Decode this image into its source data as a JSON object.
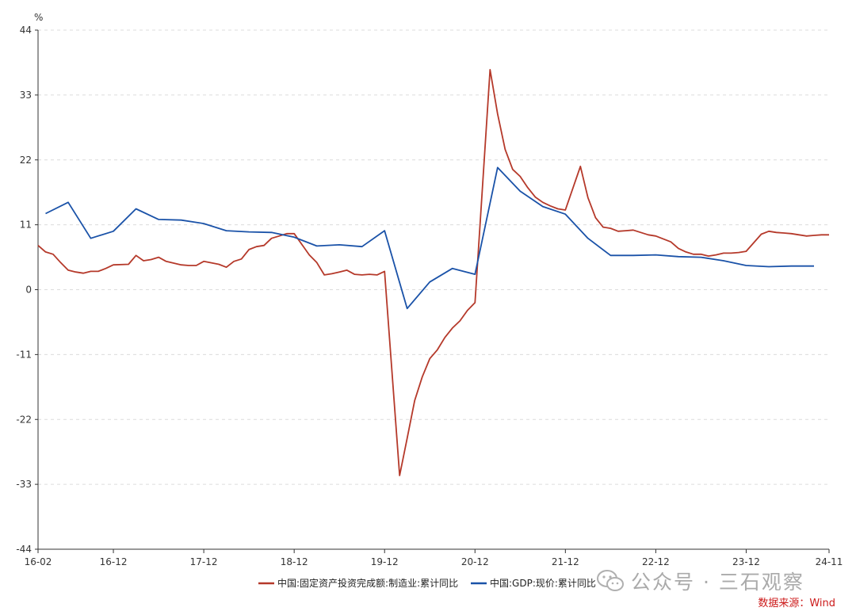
{
  "chart_data": {
    "type": "line",
    "unit_label": "%",
    "ylim": [
      -44,
      44
    ],
    "yticks": [
      44,
      33,
      22,
      11,
      0,
      -11,
      -22,
      -33,
      -44
    ],
    "xlim": [
      "2016-02",
      "2024-11"
    ],
    "xticks": [
      "16-02",
      "16-12",
      "17-12",
      "18-12",
      "19-12",
      "20-12",
      "21-12",
      "22-12",
      "23-12",
      "24-11"
    ],
    "grid": "horizontal dashed",
    "legend_position": "bottom",
    "series": [
      {
        "name": "中国:固定资产投资完成额:制造业:累计同比",
        "color": "#b5392a",
        "points": [
          [
            "2016-02",
            7.5
          ],
          [
            "2016-03",
            6.4
          ],
          [
            "2016-04",
            6.0
          ],
          [
            "2016-05",
            4.6
          ],
          [
            "2016-06",
            3.3
          ],
          [
            "2016-07",
            3.0
          ],
          [
            "2016-08",
            2.8
          ],
          [
            "2016-09",
            3.1
          ],
          [
            "2016-10",
            3.1
          ],
          [
            "2016-11",
            3.6
          ],
          [
            "2016-12",
            4.2
          ],
          [
            "2017-02",
            4.3
          ],
          [
            "2017-03",
            5.8
          ],
          [
            "2017-04",
            4.9
          ],
          [
            "2017-05",
            5.1
          ],
          [
            "2017-06",
            5.5
          ],
          [
            "2017-07",
            4.8
          ],
          [
            "2017-08",
            4.5
          ],
          [
            "2017-09",
            4.2
          ],
          [
            "2017-10",
            4.1
          ],
          [
            "2017-11",
            4.1
          ],
          [
            "2017-12",
            4.8
          ],
          [
            "2018-02",
            4.3
          ],
          [
            "2018-03",
            3.8
          ],
          [
            "2018-04",
            4.8
          ],
          [
            "2018-05",
            5.2
          ],
          [
            "2018-06",
            6.8
          ],
          [
            "2018-07",
            7.3
          ],
          [
            "2018-08",
            7.5
          ],
          [
            "2018-09",
            8.7
          ],
          [
            "2018-10",
            9.1
          ],
          [
            "2018-11",
            9.5
          ],
          [
            "2018-12",
            9.5
          ],
          [
            "2019-02",
            5.9
          ],
          [
            "2019-03",
            4.6
          ],
          [
            "2019-04",
            2.5
          ],
          [
            "2019-05",
            2.7
          ],
          [
            "2019-06",
            3.0
          ],
          [
            "2019-07",
            3.3
          ],
          [
            "2019-08",
            2.6
          ],
          [
            "2019-09",
            2.5
          ],
          [
            "2019-10",
            2.6
          ],
          [
            "2019-11",
            2.5
          ],
          [
            "2019-12",
            3.1
          ],
          [
            "2020-02",
            -31.5
          ],
          [
            "2020-03",
            -25.2
          ],
          [
            "2020-04",
            -18.8
          ],
          [
            "2020-05",
            -14.8
          ],
          [
            "2020-06",
            -11.7
          ],
          [
            "2020-07",
            -10.2
          ],
          [
            "2020-08",
            -8.1
          ],
          [
            "2020-09",
            -6.5
          ],
          [
            "2020-10",
            -5.3
          ],
          [
            "2020-11",
            -3.5
          ],
          [
            "2020-12",
            -2.2
          ],
          [
            "2021-02",
            37.3
          ],
          [
            "2021-03",
            29.8
          ],
          [
            "2021-04",
            23.8
          ],
          [
            "2021-05",
            20.4
          ],
          [
            "2021-06",
            19.2
          ],
          [
            "2021-07",
            17.3
          ],
          [
            "2021-08",
            15.7
          ],
          [
            "2021-09",
            14.8
          ],
          [
            "2021-10",
            14.2
          ],
          [
            "2021-11",
            13.7
          ],
          [
            "2021-12",
            13.5
          ],
          [
            "2022-02",
            20.9
          ],
          [
            "2022-03",
            15.6
          ],
          [
            "2022-04",
            12.2
          ],
          [
            "2022-05",
            10.6
          ],
          [
            "2022-06",
            10.4
          ],
          [
            "2022-07",
            9.9
          ],
          [
            "2022-08",
            10.0
          ],
          [
            "2022-09",
            10.1
          ],
          [
            "2022-10",
            9.7
          ],
          [
            "2022-11",
            9.3
          ],
          [
            "2022-12",
            9.1
          ],
          [
            "2023-02",
            8.1
          ],
          [
            "2023-03",
            7.0
          ],
          [
            "2023-04",
            6.4
          ],
          [
            "2023-05",
            6.0
          ],
          [
            "2023-06",
            6.0
          ],
          [
            "2023-07",
            5.7
          ],
          [
            "2023-08",
            5.9
          ],
          [
            "2023-09",
            6.2
          ],
          [
            "2023-10",
            6.2
          ],
          [
            "2023-11",
            6.3
          ],
          [
            "2023-12",
            6.5
          ],
          [
            "2024-02",
            9.4
          ],
          [
            "2024-03",
            9.9
          ],
          [
            "2024-04",
            9.7
          ],
          [
            "2024-05",
            9.6
          ],
          [
            "2024-06",
            9.5
          ],
          [
            "2024-07",
            9.3
          ],
          [
            "2024-08",
            9.1
          ],
          [
            "2024-09",
            9.2
          ],
          [
            "2024-10",
            9.3
          ],
          [
            "2024-11",
            9.3
          ]
        ]
      },
      {
        "name": "中国:GDP:现价:累计同比",
        "color": "#1a52a8",
        "points": [
          [
            "2016-03",
            12.9
          ],
          [
            "2016-06",
            14.8
          ],
          [
            "2016-09",
            8.7
          ],
          [
            "2016-12",
            9.9
          ],
          [
            "2017-03",
            13.7
          ],
          [
            "2017-06",
            11.9
          ],
          [
            "2017-09",
            11.8
          ],
          [
            "2017-12",
            11.2
          ],
          [
            "2018-03",
            10.0
          ],
          [
            "2018-06",
            9.8
          ],
          [
            "2018-09",
            9.7
          ],
          [
            "2018-12",
            8.9
          ],
          [
            "2019-03",
            7.4
          ],
          [
            "2019-06",
            7.6
          ],
          [
            "2019-09",
            7.3
          ],
          [
            "2019-12",
            10.0
          ],
          [
            "2020-03",
            -3.2
          ],
          [
            "2020-06",
            1.3
          ],
          [
            "2020-09",
            3.6
          ],
          [
            "2020-12",
            2.6
          ],
          [
            "2021-03",
            20.7
          ],
          [
            "2021-06",
            16.7
          ],
          [
            "2021-09",
            14.1
          ],
          [
            "2021-12",
            12.8
          ],
          [
            "2022-03",
            8.7
          ],
          [
            "2022-06",
            5.8
          ],
          [
            "2022-09",
            5.8
          ],
          [
            "2022-12",
            5.9
          ],
          [
            "2023-03",
            5.6
          ],
          [
            "2023-06",
            5.5
          ],
          [
            "2023-09",
            4.9
          ],
          [
            "2023-12",
            4.1
          ],
          [
            "2024-03",
            3.9
          ],
          [
            "2024-06",
            4.0
          ],
          [
            "2024-09",
            4.0
          ]
        ]
      }
    ]
  },
  "watermark": {
    "text": "公众号 · 三石观察",
    "icon": "wechat-icon"
  },
  "source": "数据来源：Wind"
}
